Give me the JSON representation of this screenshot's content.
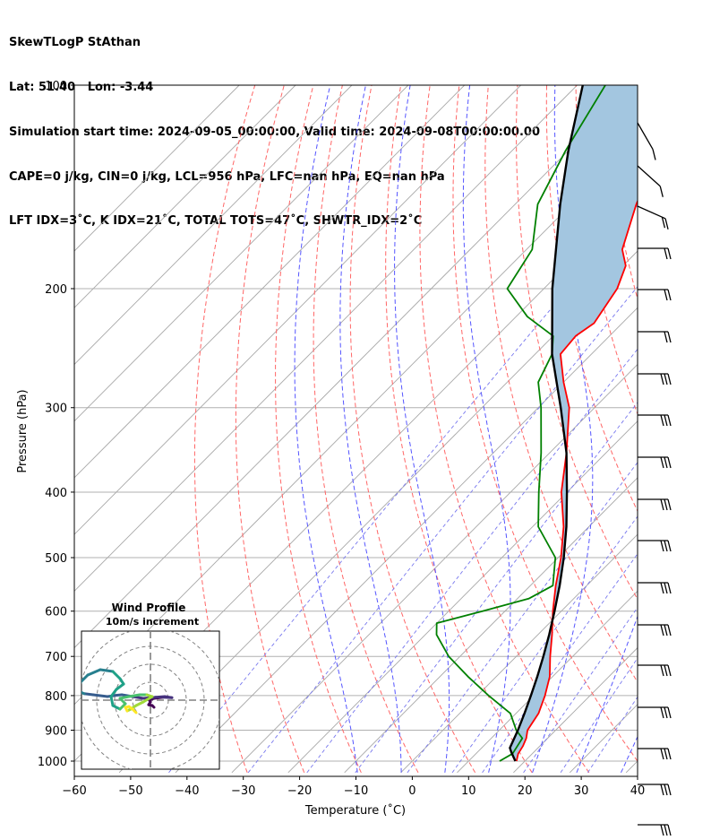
{
  "header": {
    "line1": "SkewTLogP StAthan",
    "line2": "Lat: 51.40   Lon: -3.44",
    "line3": "Simulation start time: 2024-09-05_00:00:00, Valid time: 2024-09-08T00:00:00.00",
    "line4": "CAPE=0 j/kg, CIN=0 j/kg, LCL=956 hPa, LFC=nan hPa, EQ=nan hPa",
    "line5": "LFT IDX=3˚C, K IDX=21˚C, TOTAL TOTS=47˚C, SHWTR_IDX=2˚C"
  },
  "chart_data": [
    {
      "type": "line",
      "subtype": "skew-t log-p",
      "xlabel": "Temperature (˚C)",
      "ylabel": "Pressure (hPa)",
      "x_ticks": [
        "−60",
        "−50",
        "−40",
        "−30",
        "−20",
        "−10",
        "0",
        "10",
        "20",
        "30",
        "40"
      ],
      "y_ticks": [
        "100",
        "200",
        "300",
        "400",
        "500",
        "600",
        "700",
        "800",
        "900",
        "1000"
      ],
      "xlim": [
        -60,
        40
      ],
      "ylim": [
        1040,
        100
      ],
      "y_scale": "log",
      "grid": true,
      "series": [
        {
          "role": "temperature",
          "color": "#ff0000",
          "points": [
            [
              1000,
              18.5
            ],
            [
              975,
              17.5
            ],
            [
              950,
              17.0
            ],
            [
              925,
              16.2
            ],
            [
              900,
              15.0
            ],
            [
              850,
              14.0
            ],
            [
              800,
              12.0
            ],
            [
              750,
              9.5
            ],
            [
              700,
              6.0
            ],
            [
              650,
              2.5
            ],
            [
              600,
              -1.5
            ],
            [
              550,
              -5.5
            ],
            [
              500,
              -9.5
            ],
            [
              450,
              -14.5
            ],
            [
              400,
              -21.0
            ],
            [
              350,
              -27.0
            ],
            [
              300,
              -34.5
            ],
            [
              275,
              -40.0
            ],
            [
              250,
              -45.5
            ],
            [
              235,
              -46.0
            ],
            [
              225,
              -45.0
            ],
            [
              200,
              -47.0
            ],
            [
              185,
              -49.5
            ],
            [
              175,
              -53.0
            ],
            [
              150,
              -58.5
            ],
            [
              125,
              -64.0
            ],
            [
              100,
              -71.0
            ]
          ]
        },
        {
          "role": "dewpoint",
          "color": "#008000",
          "points": [
            [
              1000,
              15.5
            ],
            [
              975,
              16.5
            ],
            [
              950,
              16.0
            ],
            [
              925,
              15.5
            ],
            [
              900,
              13.0
            ],
            [
              850,
              9.0
            ],
            [
              800,
              2.0
            ],
            [
              750,
              -5.0
            ],
            [
              700,
              -12.0
            ],
            [
              650,
              -18.0
            ],
            [
              625,
              -20.0
            ],
            [
              600,
              -14.0
            ],
            [
              575,
              -8.0
            ],
            [
              550,
              -6.0
            ],
            [
              500,
              -10.5
            ],
            [
              450,
              -19.0
            ],
            [
              400,
              -25.0
            ],
            [
              350,
              -31.5
            ],
            [
              300,
              -39.5
            ],
            [
              275,
              -44.5
            ],
            [
              250,
              -47.0
            ],
            [
              235,
              -50.0
            ],
            [
              220,
              -58.0
            ],
            [
              200,
              -66.5
            ],
            [
              175,
              -69.0
            ],
            [
              150,
              -76.0
            ],
            [
              125,
              -80.5
            ],
            [
              100,
              -85.0
            ]
          ]
        },
        {
          "role": "parcel",
          "color": "#000000",
          "points": [
            [
              1000,
              18.3
            ],
            [
              970,
              16.0
            ],
            [
              956,
              15.0
            ],
            [
              900,
              13.3
            ],
            [
              850,
              11.5
            ],
            [
              800,
              9.5
            ],
            [
              750,
              7.3
            ],
            [
              700,
              4.8
            ],
            [
              650,
              2.0
            ],
            [
              600,
              -1.2
            ],
            [
              550,
              -4.8
            ],
            [
              500,
              -9.0
            ],
            [
              450,
              -14.0
            ],
            [
              400,
              -20.0
            ],
            [
              350,
              -27.0
            ],
            [
              300,
              -36.0
            ],
            [
              250,
              -47.0
            ],
            [
              200,
              -58.5
            ],
            [
              150,
              -72.0
            ],
            [
              125,
              -80.0
            ],
            [
              100,
              -89.0
            ]
          ]
        }
      ],
      "shading": "CIN region between parcel and temperature",
      "wind_barbs": "right margin, 100–1000 hPa"
    },
    {
      "type": "scatter",
      "subtype": "hodograph",
      "title_line1": "Wind Profile",
      "title_line2": "10m/s increment",
      "rings": 4,
      "colormap": "viridis",
      "points": [
        [
          1.0,
          -2.0
        ],
        [
          0.5,
          -1.5
        ],
        [
          -0.5,
          -1.3
        ],
        [
          0.0,
          -0.5
        ],
        [
          -0.3,
          0.0
        ],
        [
          1.0,
          0.5
        ],
        [
          3.5,
          0.8
        ],
        [
          6.0,
          0.7
        ],
        [
          4.0,
          1.0
        ],
        [
          1.5,
          0.8
        ],
        [
          -2.0,
          0.5
        ],
        [
          -5.0,
          1.0
        ],
        [
          -8.0,
          1.5
        ],
        [
          -10.0,
          1.3
        ],
        [
          -12.0,
          1.0
        ],
        [
          -16.0,
          1.5
        ],
        [
          -18.5,
          1.8
        ],
        [
          -20.0,
          2.5
        ],
        [
          -19.5,
          5.0
        ],
        [
          -17.5,
          7.0
        ],
        [
          -14.0,
          8.5
        ],
        [
          -10.5,
          8.0
        ],
        [
          -8.5,
          6.0
        ],
        [
          -7.5,
          4.5
        ],
        [
          -9.5,
          3.0
        ],
        [
          -11.0,
          1.0
        ],
        [
          -10.5,
          -1.5
        ],
        [
          -8.5,
          -2.5
        ],
        [
          -7.0,
          -1.0
        ],
        [
          -8.5,
          0.5
        ],
        [
          -6.0,
          1.0
        ],
        [
          -3.0,
          1.5
        ],
        [
          -1.0,
          1.5
        ],
        [
          0.5,
          1.0
        ],
        [
          -2.0,
          -0.5
        ],
        [
          -4.0,
          -1.5
        ],
        [
          -5.5,
          -2.5
        ],
        [
          -6.5,
          -3.0
        ],
        [
          -7.0,
          -2.0
        ],
        [
          -6.0,
          -1.8
        ],
        [
          -5.0,
          -2.5
        ],
        [
          -4.0,
          -3.5
        ]
      ]
    }
  ]
}
